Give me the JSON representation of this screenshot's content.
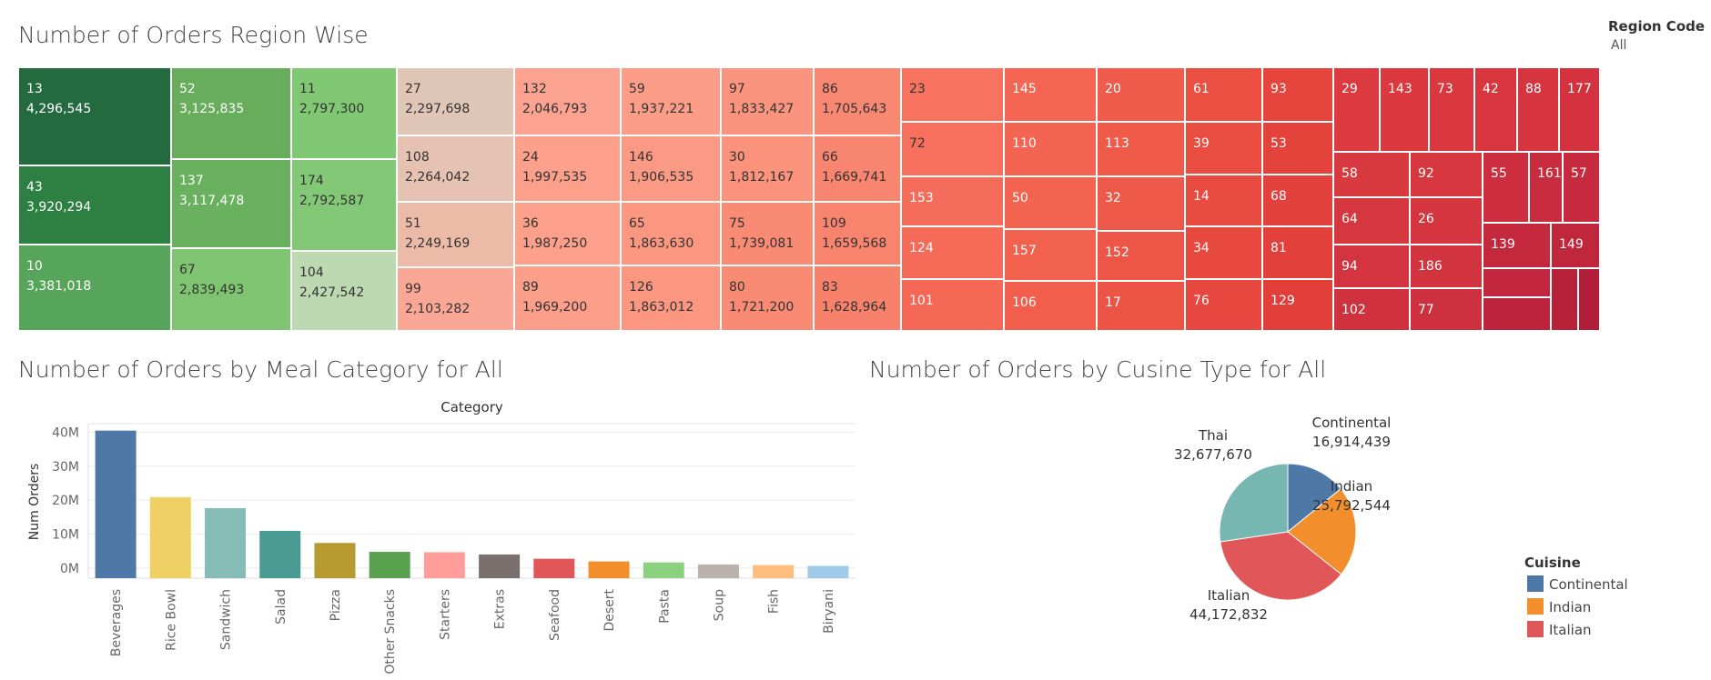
{
  "region_filter": {
    "title": "Region Code",
    "value": "All"
  },
  "treemap": {
    "title": "Number of Orders Region Wise",
    "columns": [
      {
        "cells": [
          {
            "code": "13",
            "value": "4,296,545",
            "color": "#236b3f"
          },
          {
            "code": "43",
            "value": "3,920,294",
            "color": "#2e7f42"
          },
          {
            "code": "10",
            "value": "3,381,018",
            "color": "#57a55a"
          }
        ]
      },
      {
        "cells": [
          {
            "code": "52",
            "value": "3,125,835",
            "color": "#67ad5c"
          },
          {
            "code": "137",
            "value": "3,117,478",
            "color": "#69b15e"
          },
          {
            "code": "67",
            "value": "2,839,493",
            "color": "#7fc571"
          }
        ]
      },
      {
        "cells": [
          {
            "code": "11",
            "value": "2,797,300",
            "color": "#81c874"
          },
          {
            "code": "174",
            "value": "2,792,587",
            "color": "#83c876"
          },
          {
            "code": "104",
            "value": "2,427,542",
            "color": "#bcd9b1"
          }
        ]
      },
      {
        "cells": [
          {
            "code": "27",
            "value": "2,297,698",
            "color": "#e0c6b6"
          },
          {
            "code": "108",
            "value": "2,264,042",
            "color": "#e5c2b1"
          },
          {
            "code": "51",
            "value": "2,249,169",
            "color": "#ebbba8"
          },
          {
            "code": "99",
            "value": "2,103,282",
            "color": "#faa895"
          }
        ]
      },
      {
        "cells": [
          {
            "code": "132",
            "value": "2,046,793",
            "color": "#fba390"
          },
          {
            "code": "24",
            "value": "1,997,535",
            "color": "#fca08b"
          },
          {
            "code": "36",
            "value": "1,987,250",
            "color": "#fca08b"
          },
          {
            "code": "89",
            "value": "1,969,200",
            "color": "#fc9f8a"
          }
        ]
      },
      {
        "cells": [
          {
            "code": "59",
            "value": "1,937,221",
            "color": "#fb9d87"
          },
          {
            "code": "146",
            "value": "1,906,535",
            "color": "#fb9a84"
          },
          {
            "code": "65",
            "value": "1,863,630",
            "color": "#fb9781"
          },
          {
            "code": "126",
            "value": "1,863,012",
            "color": "#fb9781"
          }
        ]
      },
      {
        "cells": [
          {
            "code": "97",
            "value": "1,833,427",
            "color": "#fa947e"
          },
          {
            "code": "30",
            "value": "1,812,167",
            "color": "#fa927c"
          },
          {
            "code": "75",
            "value": "1,739,081",
            "color": "#f98b75"
          },
          {
            "code": "80",
            "value": "1,721,200",
            "color": "#f98a74"
          }
        ]
      },
      {
        "cells": [
          {
            "code": "86",
            "value": "1,705,643",
            "color": "#f98872"
          },
          {
            "code": "66",
            "value": "1,669,741",
            "color": "#f8856f"
          },
          {
            "code": "109",
            "value": "1,659,568",
            "color": "#f8846e"
          },
          {
            "code": "83",
            "value": "1,628,964",
            "color": "#f8816b"
          }
        ]
      },
      {
        "cells": [
          {
            "code": "23",
            "value": "",
            "color": "#f7735f"
          },
          {
            "code": "72",
            "value": "",
            "color": "#f7705d"
          },
          {
            "code": "153",
            "value": "",
            "color": "#f66c5a"
          },
          {
            "code": "124",
            "value": "",
            "color": "#f66a58"
          },
          {
            "code": "101",
            "value": "",
            "color": "#f56855"
          }
        ]
      },
      {
        "cells": [
          {
            "code": "145",
            "value": "",
            "color": "#f46653"
          },
          {
            "code": "110",
            "value": "",
            "color": "#f46452"
          },
          {
            "code": "50",
            "value": "",
            "color": "#f36350"
          },
          {
            "code": "157",
            "value": "",
            "color": "#f2604e"
          },
          {
            "code": "106",
            "value": "",
            "color": "#f15e4c"
          }
        ]
      },
      {
        "cells": [
          {
            "code": "20",
            "value": "",
            "color": "#f05c4b"
          },
          {
            "code": "113",
            "value": "",
            "color": "#ef5a49"
          },
          {
            "code": "32",
            "value": "",
            "color": "#ee5848"
          },
          {
            "code": "152",
            "value": "",
            "color": "#ed5646"
          },
          {
            "code": "17",
            "value": "",
            "color": "#ec5445"
          }
        ]
      },
      {
        "cells": [
          {
            "code": "61",
            "value": "",
            "color": "#ea4f42"
          },
          {
            "code": "39",
            "value": "",
            "color": "#e94d41"
          },
          {
            "code": "14",
            "value": "",
            "color": "#e84b40"
          },
          {
            "code": "34",
            "value": "",
            "color": "#e7493f"
          },
          {
            "code": "76",
            "value": "",
            "color": "#e6473e"
          }
        ]
      },
      {
        "cells": [
          {
            "code": "93",
            "value": "",
            "color": "#e5453d"
          },
          {
            "code": "53",
            "value": "",
            "color": "#e4433c"
          },
          {
            "code": "68",
            "value": "",
            "color": "#e3423c"
          },
          {
            "code": "81",
            "value": "",
            "color": "#e2403b"
          },
          {
            "code": "129",
            "value": "",
            "color": "#e13e3a"
          }
        ]
      }
    ],
    "right_block": {
      "row1": [
        {
          "code": "29",
          "color": "#dc3a3e"
        },
        {
          "code": "143",
          "color": "#db393e"
        },
        {
          "code": "73",
          "color": "#da383e"
        },
        {
          "code": "42",
          "color": "#d8363f"
        },
        {
          "code": "88",
          "color": "#d6343f"
        },
        {
          "code": "177",
          "color": "#d4323f"
        }
      ],
      "left_grid": [
        {
          "code": "58",
          "color": "#d93a3f"
        },
        {
          "code": "92",
          "color": "#d7383f"
        },
        {
          "code": "64",
          "color": "#d6373f"
        },
        {
          "code": "26",
          "color": "#d4353f"
        },
        {
          "code": "94",
          "color": "#d3343f"
        },
        {
          "code": "186",
          "color": "#d1333f"
        },
        {
          "code": "102",
          "color": "#cf313f"
        },
        {
          "code": "77",
          "color": "#cd303f"
        }
      ],
      "right_grid": [
        {
          "code": "55",
          "color": "#cc2e3f"
        },
        {
          "code": "161",
          "color": "#c92c3e"
        },
        {
          "code": "57",
          "color": "#c72a3e"
        },
        {
          "code": "139",
          "color": "#c4283d"
        },
        {
          "code": "149",
          "color": "#c0263c"
        },
        {
          "code": "",
          "color": "#c2273d"
        },
        {
          "code": "",
          "color": "#bd243b"
        },
        {
          "code": "",
          "color": "#b72239"
        },
        {
          "code": "",
          "color": "#b01f37"
        }
      ]
    }
  },
  "meal_chart": {
    "title": "Number of Orders by Meal Category for All",
    "chart_data": {
      "type": "bar",
      "title": "Category",
      "ylabel": "Num Orders",
      "categories": [
        "Beverages",
        "Rice Bowl",
        "Sandwich",
        "Salad",
        "Pizza",
        "Other Snacks",
        "Starters",
        "Extras",
        "Seafood",
        "Desert",
        "Pasta",
        "Soup",
        "Fish",
        "Biryani"
      ],
      "values": [
        40480525,
        20874063,
        17636782,
        10944336,
        7383720,
        4766293,
        4649122,
        3984979,
        2715714,
        1940754,
        1637744,
        1039646,
        871959,
        631848
      ],
      "colors": [
        "#4e79a7",
        "#f0cf64",
        "#86bcb6",
        "#4a9a94",
        "#b79a30",
        "#59a14f",
        "#ff9d9a",
        "#79706e",
        "#e15759",
        "#f28e2b",
        "#8cd17d",
        "#bab0ac",
        "#ffbe7d",
        "#a0cbe8"
      ],
      "ylim": [
        0,
        42000000
      ],
      "yticks": [
        0,
        10000000,
        20000000,
        30000000,
        40000000
      ],
      "ytick_labels": [
        "0M",
        "10M",
        "20M",
        "30M",
        "40M"
      ],
      "grid": true
    }
  },
  "cuisine_chart": {
    "title": "Number of Orders by Cusine Type for  All",
    "chart_data": {
      "type": "pie",
      "slices": [
        {
          "name": "Continental",
          "value": 16914439,
          "label": "16,914,439",
          "color": "#4e79a7"
        },
        {
          "name": "Indian",
          "value": 25792544,
          "label": "25,792,544",
          "color": "#f28e2b"
        },
        {
          "name": "Italian",
          "value": 44172832,
          "label": "44,172,832",
          "color": "#e15759"
        },
        {
          "name": "Thai",
          "value": 32677670,
          "label": "32,677,670",
          "color": "#76b7b2"
        }
      ],
      "legend_title": "Cuisine",
      "legend": [
        "Continental",
        "Indian",
        "Italian"
      ],
      "legend_placement": "bottom-right"
    }
  }
}
